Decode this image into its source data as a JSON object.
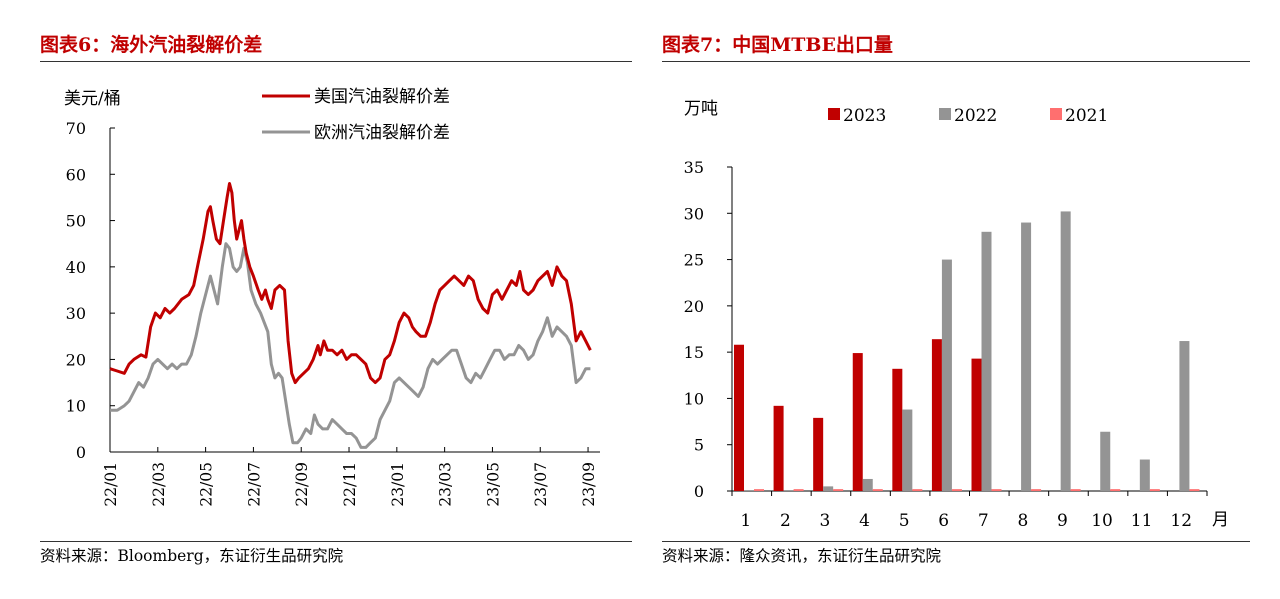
{
  "left": {
    "title": "图表6：海外汽油裂解价差",
    "source": "资料来源：Bloomberg，东证衍生品研究院"
  },
  "right": {
    "title": "图表7：中国MTBE出口量",
    "source": "资料来源：隆众资讯，东证衍生品研究院"
  },
  "chart_data": [
    {
      "type": "line",
      "ylabel": "美元/桶",
      "ylim": [
        0,
        70
      ],
      "yticks": [
        0,
        10,
        20,
        30,
        40,
        50,
        60,
        70
      ],
      "xlim": [
        0,
        20.5
      ],
      "xticks": [
        {
          "label": "22/01",
          "x": 0
        },
        {
          "label": "22/03",
          "x": 2
        },
        {
          "label": "22/05",
          "x": 4
        },
        {
          "label": "22/07",
          "x": 6
        },
        {
          "label": "22/09",
          "x": 8
        },
        {
          "label": "22/11",
          "x": 10
        },
        {
          "label": "23/01",
          "x": 12
        },
        {
          "label": "23/03",
          "x": 14
        },
        {
          "label": "23/05",
          "x": 16
        },
        {
          "label": "23/07",
          "x": 18
        },
        {
          "label": "23/09",
          "x": 20
        }
      ],
      "legend_position": "top-right",
      "series": [
        {
          "name": "美国汽油裂解价差",
          "color": "#c00000",
          "points": [
            [
              0,
              18
            ],
            [
              0.3,
              17.5
            ],
            [
              0.6,
              17
            ],
            [
              0.8,
              19
            ],
            [
              1.0,
              20
            ],
            [
              1.3,
              21
            ],
            [
              1.5,
              20.5
            ],
            [
              1.7,
              27
            ],
            [
              1.9,
              30
            ],
            [
              2.1,
              29
            ],
            [
              2.3,
              31
            ],
            [
              2.5,
              30
            ],
            [
              2.7,
              31
            ],
            [
              3.0,
              33
            ],
            [
              3.3,
              34
            ],
            [
              3.5,
              36
            ],
            [
              3.7,
              41
            ],
            [
              3.9,
              46
            ],
            [
              4.1,
              52
            ],
            [
              4.2,
              53
            ],
            [
              4.3,
              50
            ],
            [
              4.45,
              46
            ],
            [
              4.6,
              45
            ],
            [
              4.75,
              50
            ],
            [
              4.9,
              55
            ],
            [
              5.0,
              58
            ],
            [
              5.1,
              56
            ],
            [
              5.2,
              50
            ],
            [
              5.3,
              46
            ],
            [
              5.4,
              48
            ],
            [
              5.5,
              50
            ],
            [
              5.6,
              46
            ],
            [
              5.7,
              43
            ],
            [
              5.85,
              40
            ],
            [
              6.0,
              38
            ],
            [
              6.2,
              35
            ],
            [
              6.35,
              33
            ],
            [
              6.5,
              35
            ],
            [
              6.6,
              33
            ],
            [
              6.75,
              31
            ],
            [
              6.9,
              35
            ],
            [
              7.1,
              36
            ],
            [
              7.3,
              35
            ],
            [
              7.45,
              24
            ],
            [
              7.6,
              17
            ],
            [
              7.75,
              15
            ],
            [
              7.9,
              16
            ],
            [
              8.1,
              17
            ],
            [
              8.3,
              18
            ],
            [
              8.5,
              20
            ],
            [
              8.7,
              23
            ],
            [
              8.8,
              21
            ],
            [
              8.95,
              24
            ],
            [
              9.1,
              22
            ],
            [
              9.3,
              22
            ],
            [
              9.5,
              21
            ],
            [
              9.7,
              22
            ],
            [
              9.9,
              20
            ],
            [
              10.1,
              21
            ],
            [
              10.3,
              21
            ],
            [
              10.5,
              20
            ],
            [
              10.7,
              19
            ],
            [
              10.9,
              16
            ],
            [
              11.1,
              15
            ],
            [
              11.3,
              16
            ],
            [
              11.5,
              20
            ],
            [
              11.7,
              21
            ],
            [
              11.9,
              24
            ],
            [
              12.1,
              28
            ],
            [
              12.3,
              30
            ],
            [
              12.5,
              29
            ],
            [
              12.65,
              27
            ],
            [
              12.8,
              26
            ],
            [
              13.0,
              25
            ],
            [
              13.2,
              25
            ],
            [
              13.4,
              28
            ],
            [
              13.6,
              32
            ],
            [
              13.8,
              35
            ],
            [
              14.0,
              36
            ],
            [
              14.2,
              37
            ],
            [
              14.4,
              38
            ],
            [
              14.6,
              37
            ],
            [
              14.8,
              36
            ],
            [
              15.0,
              38
            ],
            [
              15.2,
              37
            ],
            [
              15.4,
              33
            ],
            [
              15.6,
              31
            ],
            [
              15.8,
              30
            ],
            [
              16.0,
              34
            ],
            [
              16.2,
              35
            ],
            [
              16.4,
              33
            ],
            [
              16.6,
              35
            ],
            [
              16.8,
              37
            ],
            [
              17.0,
              36
            ],
            [
              17.15,
              39
            ],
            [
              17.3,
              35
            ],
            [
              17.5,
              34
            ],
            [
              17.7,
              35
            ],
            [
              17.9,
              37
            ],
            [
              18.1,
              38
            ],
            [
              18.3,
              39
            ],
            [
              18.5,
              36
            ],
            [
              18.7,
              40
            ],
            [
              18.9,
              38
            ],
            [
              19.1,
              37
            ],
            [
              19.3,
              32
            ],
            [
              19.5,
              24
            ],
            [
              19.7,
              26
            ],
            [
              19.9,
              24
            ],
            [
              20.1,
              22
            ]
          ]
        },
        {
          "name": "欧洲汽油裂解价差",
          "color": "#949494",
          "points": [
            [
              0,
              9
            ],
            [
              0.3,
              9
            ],
            [
              0.6,
              10
            ],
            [
              0.8,
              11
            ],
            [
              1.0,
              13
            ],
            [
              1.2,
              15
            ],
            [
              1.4,
              14
            ],
            [
              1.6,
              16
            ],
            [
              1.8,
              19
            ],
            [
              2.0,
              20
            ],
            [
              2.2,
              19
            ],
            [
              2.4,
              18
            ],
            [
              2.6,
              19
            ],
            [
              2.8,
              18
            ],
            [
              3.0,
              19
            ],
            [
              3.2,
              19
            ],
            [
              3.4,
              21
            ],
            [
              3.6,
              25
            ],
            [
              3.8,
              30
            ],
            [
              4.0,
              34
            ],
            [
              4.2,
              38
            ],
            [
              4.35,
              35
            ],
            [
              4.5,
              32
            ],
            [
              4.7,
              40
            ],
            [
              4.85,
              45
            ],
            [
              5.0,
              44
            ],
            [
              5.15,
              40
            ],
            [
              5.3,
              39
            ],
            [
              5.45,
              40
            ],
            [
              5.6,
              44
            ],
            [
              5.75,
              41
            ],
            [
              5.9,
              35
            ],
            [
              6.1,
              32
            ],
            [
              6.3,
              30
            ],
            [
              6.45,
              28
            ],
            [
              6.6,
              26
            ],
            [
              6.75,
              19
            ],
            [
              6.9,
              16
            ],
            [
              7.05,
              17
            ],
            [
              7.2,
              16
            ],
            [
              7.35,
              11
            ],
            [
              7.5,
              6
            ],
            [
              7.65,
              2
            ],
            [
              7.85,
              2
            ],
            [
              8.0,
              3
            ],
            [
              8.2,
              5
            ],
            [
              8.4,
              4
            ],
            [
              8.55,
              8
            ],
            [
              8.7,
              6
            ],
            [
              8.9,
              5
            ],
            [
              9.1,
              5
            ],
            [
              9.3,
              7
            ],
            [
              9.5,
              6
            ],
            [
              9.7,
              5
            ],
            [
              9.9,
              4
            ],
            [
              10.1,
              4
            ],
            [
              10.3,
              3
            ],
            [
              10.5,
              1
            ],
            [
              10.7,
              1
            ],
            [
              10.9,
              2
            ],
            [
              11.1,
              3
            ],
            [
              11.3,
              7
            ],
            [
              11.5,
              9
            ],
            [
              11.7,
              11
            ],
            [
              11.9,
              15
            ],
            [
              12.1,
              16
            ],
            [
              12.3,
              15
            ],
            [
              12.5,
              14
            ],
            [
              12.7,
              13
            ],
            [
              12.9,
              12
            ],
            [
              13.1,
              14
            ],
            [
              13.3,
              18
            ],
            [
              13.5,
              20
            ],
            [
              13.7,
              19
            ],
            [
              13.9,
              20
            ],
            [
              14.1,
              21
            ],
            [
              14.3,
              22
            ],
            [
              14.5,
              22
            ],
            [
              14.7,
              19
            ],
            [
              14.9,
              16
            ],
            [
              15.1,
              15
            ],
            [
              15.3,
              17
            ],
            [
              15.5,
              16
            ],
            [
              15.7,
              18
            ],
            [
              15.9,
              20
            ],
            [
              16.1,
              22
            ],
            [
              16.3,
              22
            ],
            [
              16.5,
              20
            ],
            [
              16.7,
              21
            ],
            [
              16.9,
              21
            ],
            [
              17.1,
              23
            ],
            [
              17.3,
              22
            ],
            [
              17.5,
              20
            ],
            [
              17.7,
              21
            ],
            [
              17.9,
              24
            ],
            [
              18.1,
              26
            ],
            [
              18.3,
              29
            ],
            [
              18.5,
              25
            ],
            [
              18.7,
              27
            ],
            [
              18.9,
              26
            ],
            [
              19.1,
              25
            ],
            [
              19.3,
              23
            ],
            [
              19.5,
              15
            ],
            [
              19.7,
              16
            ],
            [
              19.9,
              18
            ],
            [
              20.1,
              18
            ]
          ]
        }
      ]
    },
    {
      "type": "bar",
      "ylabel": "万吨",
      "xlabel": "月",
      "ylim": [
        0,
        35
      ],
      "yticks": [
        0,
        5,
        10,
        15,
        20,
        25,
        30,
        35
      ],
      "categories": [
        "1",
        "2",
        "3",
        "4",
        "5",
        "6",
        "7",
        "8",
        "9",
        "10",
        "11",
        "12"
      ],
      "legend_position": "top",
      "series": [
        {
          "name": "2023",
          "color": "#c00000",
          "values": [
            15.8,
            9.2,
            7.9,
            14.9,
            13.2,
            16.4,
            14.3,
            0,
            0,
            0,
            0,
            0
          ]
        },
        {
          "name": "2022",
          "color": "#949494",
          "values": [
            0.1,
            0.1,
            0.5,
            1.3,
            8.8,
            25.0,
            28.0,
            29.0,
            30.2,
            6.4,
            3.4,
            16.2
          ]
        },
        {
          "name": "2021",
          "color": "#ff6f6f",
          "values": [
            0.2,
            0.2,
            0.2,
            0.2,
            0.2,
            0.2,
            0.2,
            0.2,
            0.2,
            0.2,
            0.2,
            0.2
          ]
        }
      ]
    }
  ]
}
